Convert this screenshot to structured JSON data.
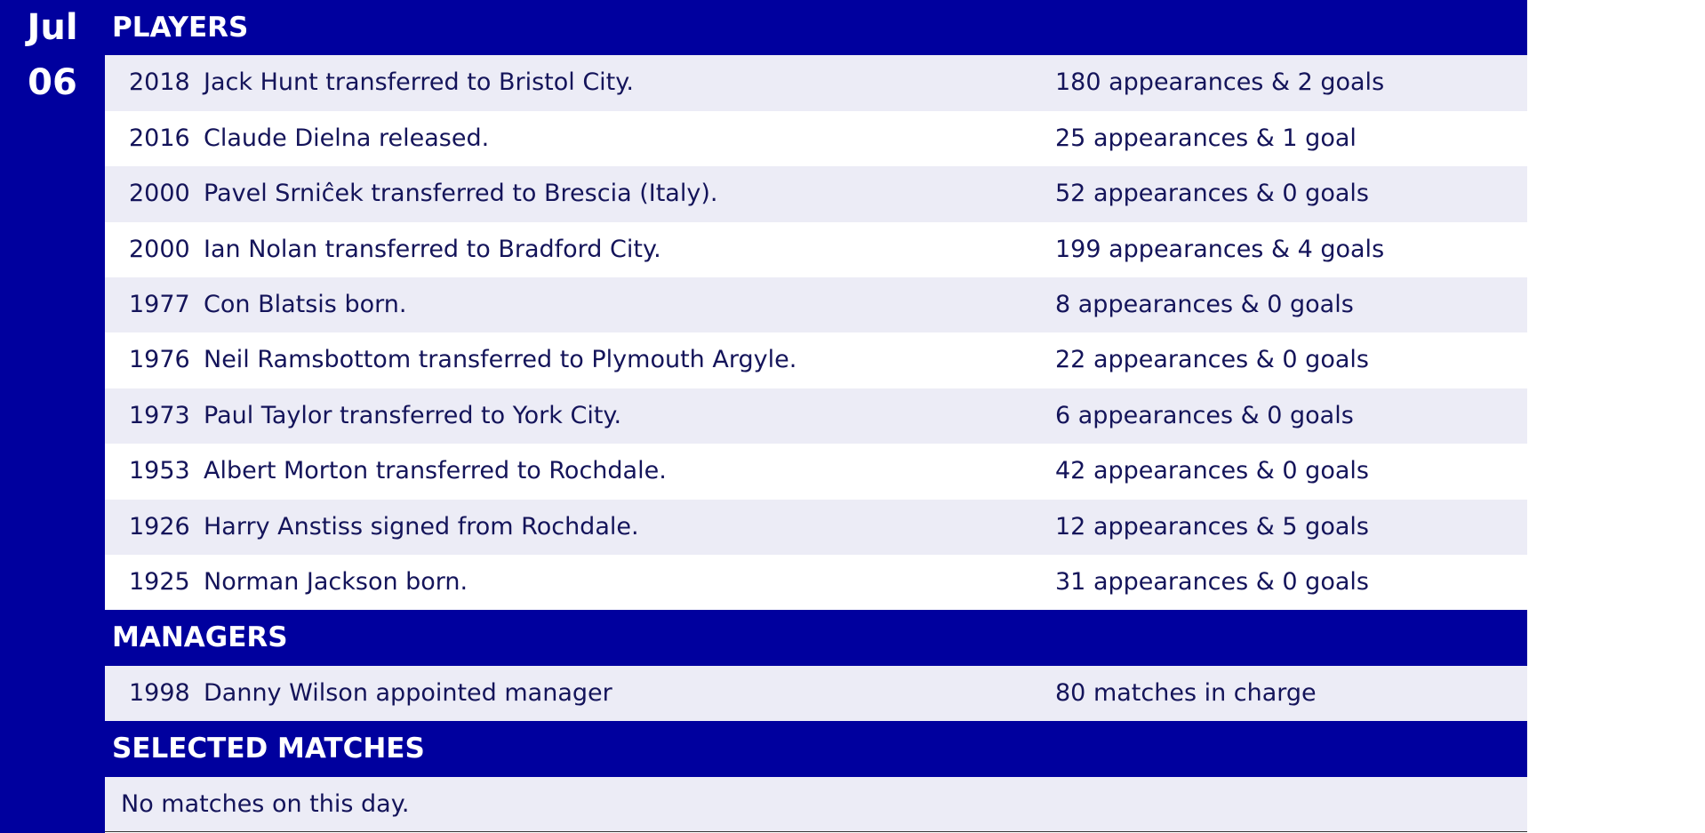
{
  "date": {
    "month": "Jul",
    "day": "06"
  },
  "players": {
    "title": "PLAYERS",
    "rows": [
      {
        "year": "2018",
        "text": "Jack Hunt transferred to Bristol City.",
        "stats": "180 appearances & 2 goals"
      },
      {
        "year": "2016",
        "text": "Claude Dielna released.",
        "stats": "25 appearances & 1 goal"
      },
      {
        "year": "2000",
        "text": "Pavel Srniĉek transferred to Brescia (Italy).",
        "stats": "52 appearances & 0 goals"
      },
      {
        "year": "2000",
        "text": "Ian Nolan transferred to Bradford City.",
        "stats": "199 appearances & 4 goals"
      },
      {
        "year": "1977",
        "text": "Con Blatsis born.",
        "stats": "8 appearances & 0 goals"
      },
      {
        "year": "1976",
        "text": "Neil Ramsbottom transferred to Plymouth Argyle.",
        "stats": "22 appearances & 0 goals"
      },
      {
        "year": "1973",
        "text": "Paul Taylor transferred to York City.",
        "stats": "6 appearances & 0 goals"
      },
      {
        "year": "1953",
        "text": "Albert Morton transferred to Rochdale.",
        "stats": "42 appearances & 0 goals"
      },
      {
        "year": "1926",
        "text": "Harry Anstiss signed from Rochdale.",
        "stats": "12 appearances & 5 goals"
      },
      {
        "year": "1925",
        "text": "Norman Jackson born.",
        "stats": "31 appearances & 0 goals"
      }
    ]
  },
  "managers": {
    "title": "MANAGERS",
    "rows": [
      {
        "year": "1998",
        "text": "Danny Wilson appointed manager",
        "stats": "80 matches in charge"
      }
    ]
  },
  "matches": {
    "title": "SELECTED MATCHES",
    "note": "No matches on this day."
  }
}
